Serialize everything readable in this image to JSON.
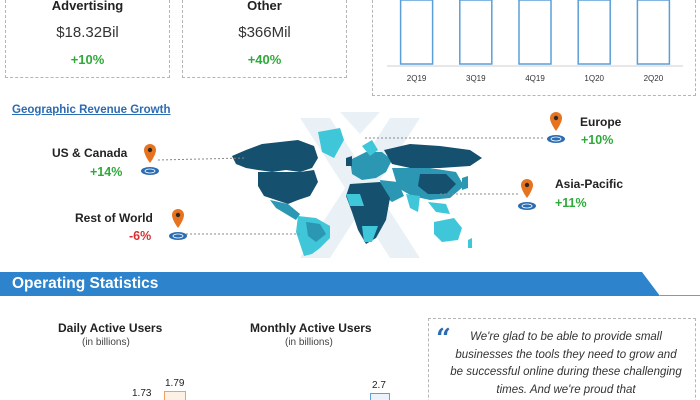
{
  "revenue_cards": [
    {
      "title": "Advertising",
      "value": "$18.32Bil",
      "change": "+10%"
    },
    {
      "title": "Other",
      "value": "$366Mil",
      "change": "+40%"
    }
  ],
  "chart_data": {
    "type": "bar",
    "categories": [
      "2Q19",
      "3Q19",
      "4Q19",
      "1Q20",
      "2Q20"
    ],
    "grid": false
  },
  "geo": {
    "title": "Geographic Revenue Growth",
    "regions": [
      {
        "name": "US & Canada",
        "change": "+14%"
      },
      {
        "name": "Europe",
        "change": "+10%"
      },
      {
        "name": "Asia-Pacific",
        "change": "+11%"
      },
      {
        "name": "Rest of World",
        "change": "-6%"
      }
    ]
  },
  "operating": {
    "title": "Operating Statistics",
    "dau": {
      "title": "Daily Active Users",
      "subtitle": "(in billions)",
      "values": [
        "1.73",
        "1.79"
      ]
    },
    "mau": {
      "title": "Monthly Active Users",
      "subtitle": "(in billions)",
      "values": [
        "2.7"
      ]
    }
  },
  "quote": {
    "mark": "“",
    "text": "We're glad to be able to provide small businesses the tools they need to grow and be successful online during these challenging times. And we're proud that"
  },
  "colors": {
    "accent": "#2b6cb3",
    "header_bar": "#2d84cc",
    "positive": "#2eaa3a",
    "negative": "#d83030",
    "pin": "#e8731f",
    "map_dark": "#16506f",
    "map_mid": "#2b97b3",
    "map_light": "#3fc6d8",
    "watermark": "#e9f1f7"
  }
}
